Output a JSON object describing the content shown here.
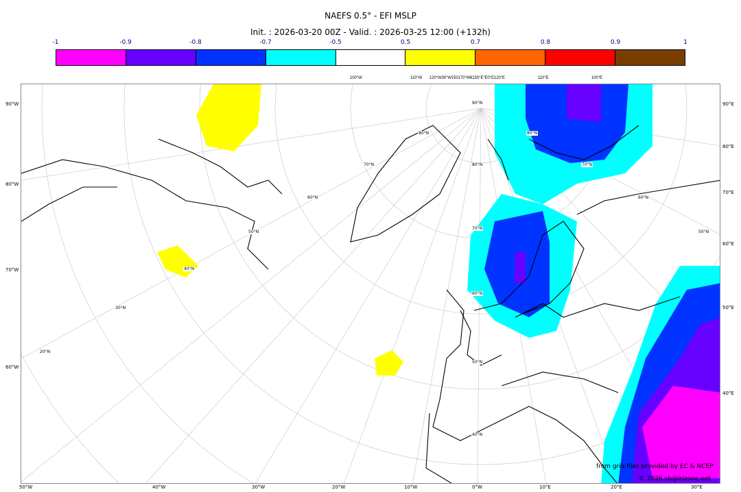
{
  "title": "NAEFS 0.5° - EFI MSLP",
  "subtitle": "Init. : 2026-03-20 00Z - Valid. : 2026-03-25 12:00 (+132h)",
  "colorbar": {
    "ticks": [
      "-1",
      "-0.9",
      "-0.8",
      "-0.7",
      "-0.5",
      "0.5",
      "0.7",
      "0.8",
      "0.9",
      "1"
    ],
    "colors": [
      "#ff00ff",
      "#6600ff",
      "#0033ff",
      "#00ffff",
      "#ffffff",
      "#ffff00",
      "#ff6600",
      "#ff0000",
      "#7a3d00"
    ]
  },
  "axes": {
    "left": [
      "90°W",
      "80°W",
      "70°W",
      "60°W"
    ],
    "right": [
      "90°E",
      "80°E",
      "70°E",
      "60°E",
      "50°E",
      "40°E"
    ],
    "bottom": [
      "50°W",
      "40°W",
      "30°W",
      "20°W",
      "10°W",
      "0°W",
      "10°E",
      "20°E",
      "30°E"
    ],
    "top": [
      "100°W",
      "110°W",
      "120°W30°W150170°W€150°E°E0°E120°E",
      "110°E",
      "100°E"
    ]
  },
  "lat_labels": [
    "90°N",
    "80°N",
    "70°N",
    "60°N",
    "50°N",
    "40°N",
    "30°N",
    "20°N",
    "80°N",
    "70°N",
    "60°N",
    "50°N",
    "40°N",
    "50°N",
    "60°N",
    "70°N"
  ],
  "credits": {
    "line1": "from grib files provided by EC & NCEP",
    "line2": "© 2026 sb@irizone.net"
  }
}
